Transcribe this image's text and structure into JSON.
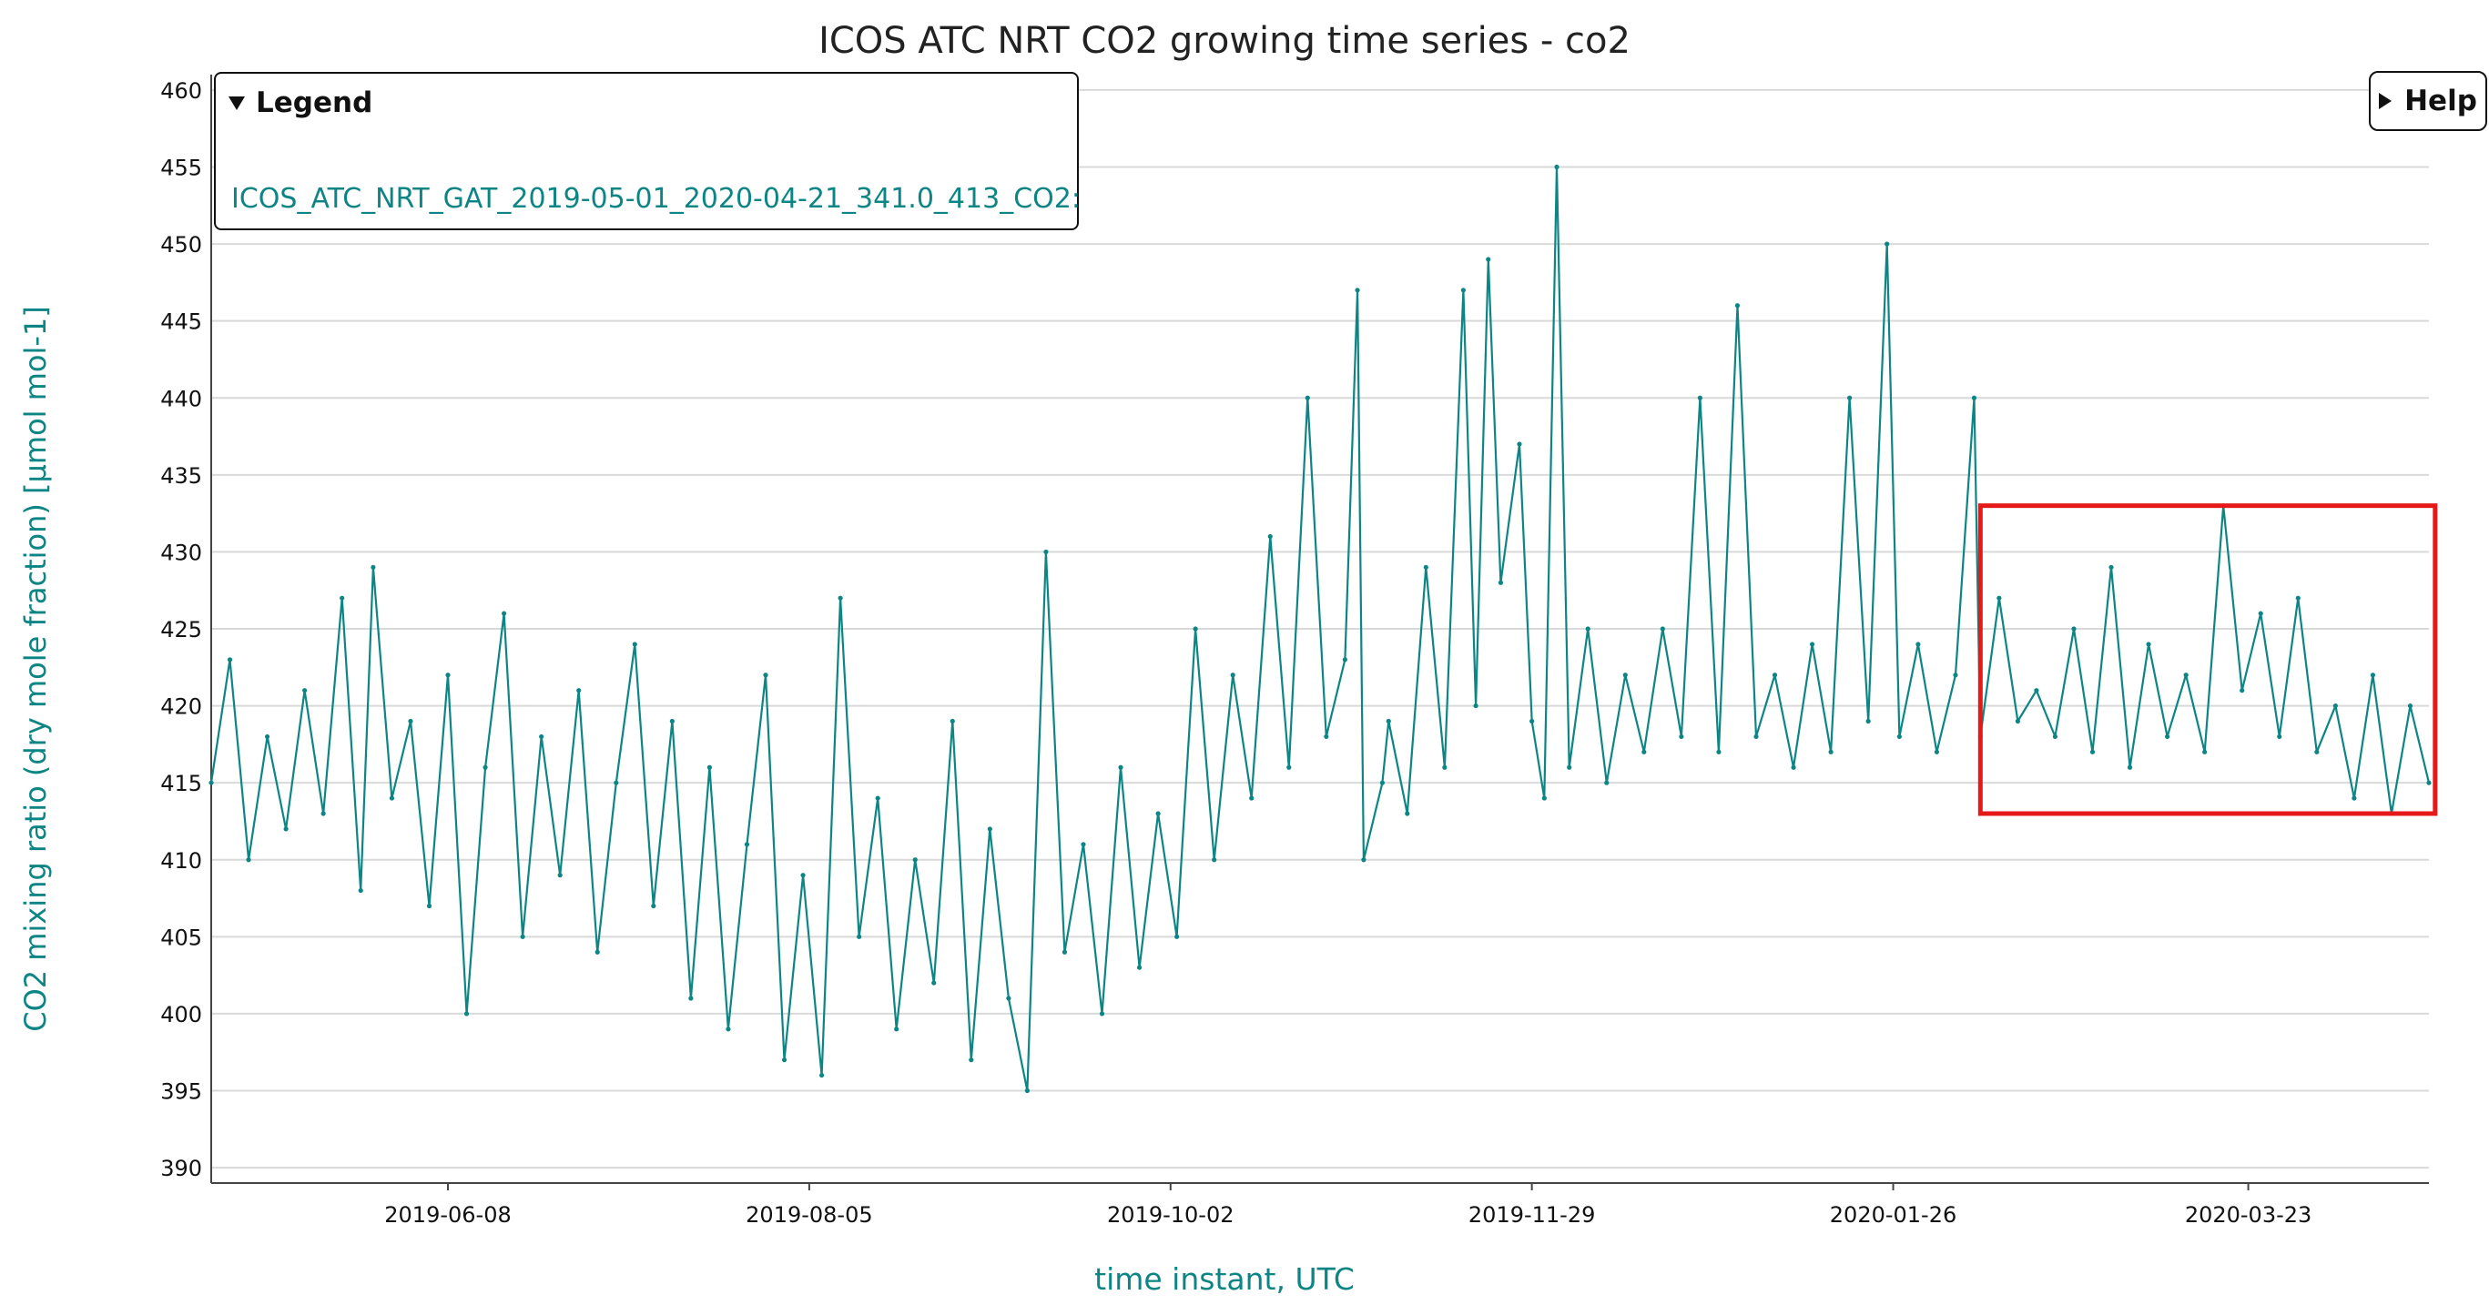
{
  "legend": {
    "title": "Legend",
    "entry": "ICOS_ATC_NRT_GAT_2019-05-01_2020-04-21_341.0_413_CO2:"
  },
  "help": {
    "label": "Help"
  },
  "colors": {
    "series": "#0d8585",
    "axis_title": "#0d8585",
    "grid": "#d9d9d9",
    "highlight": "#e61919"
  },
  "chart_data": {
    "type": "line",
    "title": "ICOS ATC NRT CO2 growing time series - co2",
    "xlabel": "time instant, UTC",
    "ylabel": "CO2 mixing ratio (dry mole fraction) [µmol mol-1]",
    "x_range": [
      "2019-05-01",
      "2020-04-21"
    ],
    "ylim": [
      389,
      461
    ],
    "x_ticks": [
      "2019-06-08",
      "2019-08-05",
      "2019-10-02",
      "2019-11-29",
      "2020-01-26",
      "2020-03-23"
    ],
    "y_ticks": [
      390,
      395,
      400,
      405,
      410,
      415,
      420,
      425,
      430,
      435,
      440,
      445,
      450,
      455,
      460
    ],
    "grid": true,
    "legend_position": "top-left",
    "highlight_box": {
      "x_range": [
        "2020-02-09",
        "2020-04-22"
      ],
      "y_range": [
        413,
        433
      ]
    },
    "series": [
      {
        "name": "ICOS_ATC_NRT_GAT_2019-05-01_2020-04-21_341.0_413_CO2:",
        "points": [
          [
            "2019-05-01",
            415
          ],
          [
            "2019-05-04",
            423
          ],
          [
            "2019-05-07",
            410
          ],
          [
            "2019-05-10",
            418
          ],
          [
            "2019-05-13",
            412
          ],
          [
            "2019-05-16",
            421
          ],
          [
            "2019-05-19",
            413
          ],
          [
            "2019-05-22",
            427
          ],
          [
            "2019-05-25",
            408
          ],
          [
            "2019-05-27",
            429
          ],
          [
            "2019-05-30",
            414
          ],
          [
            "2019-06-02",
            419
          ],
          [
            "2019-06-05",
            407
          ],
          [
            "2019-06-08",
            422
          ],
          [
            "2019-06-11",
            400
          ],
          [
            "2019-06-14",
            416
          ],
          [
            "2019-06-17",
            426
          ],
          [
            "2019-06-20",
            405
          ],
          [
            "2019-06-23",
            418
          ],
          [
            "2019-06-26",
            409
          ],
          [
            "2019-06-29",
            421
          ],
          [
            "2019-07-02",
            404
          ],
          [
            "2019-07-05",
            415
          ],
          [
            "2019-07-08",
            424
          ],
          [
            "2019-07-11",
            407
          ],
          [
            "2019-07-14",
            419
          ],
          [
            "2019-07-17",
            401
          ],
          [
            "2019-07-20",
            416
          ],
          [
            "2019-07-23",
            399
          ],
          [
            "2019-07-26",
            411
          ],
          [
            "2019-07-29",
            422
          ],
          [
            "2019-08-01",
            397
          ],
          [
            "2019-08-04",
            409
          ],
          [
            "2019-08-07",
            396
          ],
          [
            "2019-08-10",
            427
          ],
          [
            "2019-08-13",
            405
          ],
          [
            "2019-08-16",
            414
          ],
          [
            "2019-08-19",
            399
          ],
          [
            "2019-08-22",
            410
          ],
          [
            "2019-08-25",
            402
          ],
          [
            "2019-08-28",
            419
          ],
          [
            "2019-08-31",
            397
          ],
          [
            "2019-09-03",
            412
          ],
          [
            "2019-09-06",
            401
          ],
          [
            "2019-09-09",
            395
          ],
          [
            "2019-09-12",
            430
          ],
          [
            "2019-09-15",
            404
          ],
          [
            "2019-09-18",
            411
          ],
          [
            "2019-09-21",
            400
          ],
          [
            "2019-09-24",
            416
          ],
          [
            "2019-09-27",
            403
          ],
          [
            "2019-09-30",
            413
          ],
          [
            "2019-10-03",
            405
          ],
          [
            "2019-10-06",
            425
          ],
          [
            "2019-10-09",
            410
          ],
          [
            "2019-10-12",
            422
          ],
          [
            "2019-10-15",
            414
          ],
          [
            "2019-10-18",
            431
          ],
          [
            "2019-10-21",
            416
          ],
          [
            "2019-10-24",
            440
          ],
          [
            "2019-10-27",
            418
          ],
          [
            "2019-10-30",
            423
          ],
          [
            "2019-11-01",
            447
          ],
          [
            "2019-11-02",
            410
          ],
          [
            "2019-11-05",
            415
          ],
          [
            "2019-11-06",
            419
          ],
          [
            "2019-11-09",
            413
          ],
          [
            "2019-11-12",
            429
          ],
          [
            "2019-11-15",
            416
          ],
          [
            "2019-11-18",
            447
          ],
          [
            "2019-11-20",
            420
          ],
          [
            "2019-11-22",
            449
          ],
          [
            "2019-11-24",
            428
          ],
          [
            "2019-11-27",
            437
          ],
          [
            "2019-11-29",
            419
          ],
          [
            "2019-12-01",
            414
          ],
          [
            "2019-12-03",
            455
          ],
          [
            "2019-12-05",
            416
          ],
          [
            "2019-12-08",
            425
          ],
          [
            "2019-12-11",
            415
          ],
          [
            "2019-12-14",
            422
          ],
          [
            "2019-12-17",
            417
          ],
          [
            "2019-12-20",
            425
          ],
          [
            "2019-12-23",
            418
          ],
          [
            "2019-12-26",
            440
          ],
          [
            "2019-12-29",
            417
          ],
          [
            "2020-01-01",
            446
          ],
          [
            "2020-01-04",
            418
          ],
          [
            "2020-01-07",
            422
          ],
          [
            "2020-01-10",
            416
          ],
          [
            "2020-01-13",
            424
          ],
          [
            "2020-01-16",
            417
          ],
          [
            "2020-01-19",
            440
          ],
          [
            "2020-01-22",
            419
          ],
          [
            "2020-01-25",
            450
          ],
          [
            "2020-01-27",
            418
          ],
          [
            "2020-01-30",
            424
          ],
          [
            "2020-02-02",
            417
          ],
          [
            "2020-02-05",
            422
          ],
          [
            "2020-02-08",
            440
          ],
          [
            "2020-02-09",
            418
          ],
          [
            "2020-02-12",
            427
          ],
          [
            "2020-02-15",
            419
          ],
          [
            "2020-02-18",
            421
          ],
          [
            "2020-02-21",
            418
          ],
          [
            "2020-02-24",
            425
          ],
          [
            "2020-02-27",
            417
          ],
          [
            "2020-03-01",
            429
          ],
          [
            "2020-03-04",
            416
          ],
          [
            "2020-03-07",
            424
          ],
          [
            "2020-03-10",
            418
          ],
          [
            "2020-03-13",
            422
          ],
          [
            "2020-03-16",
            417
          ],
          [
            "2020-03-19",
            433
          ],
          [
            "2020-03-22",
            421
          ],
          [
            "2020-03-25",
            426
          ],
          [
            "2020-03-28",
            418
          ],
          [
            "2020-03-31",
            427
          ],
          [
            "2020-04-03",
            417
          ],
          [
            "2020-04-06",
            420
          ],
          [
            "2020-04-09",
            414
          ],
          [
            "2020-04-12",
            422
          ],
          [
            "2020-04-15",
            413
          ],
          [
            "2020-04-18",
            420
          ],
          [
            "2020-04-21",
            415
          ]
        ]
      }
    ]
  }
}
